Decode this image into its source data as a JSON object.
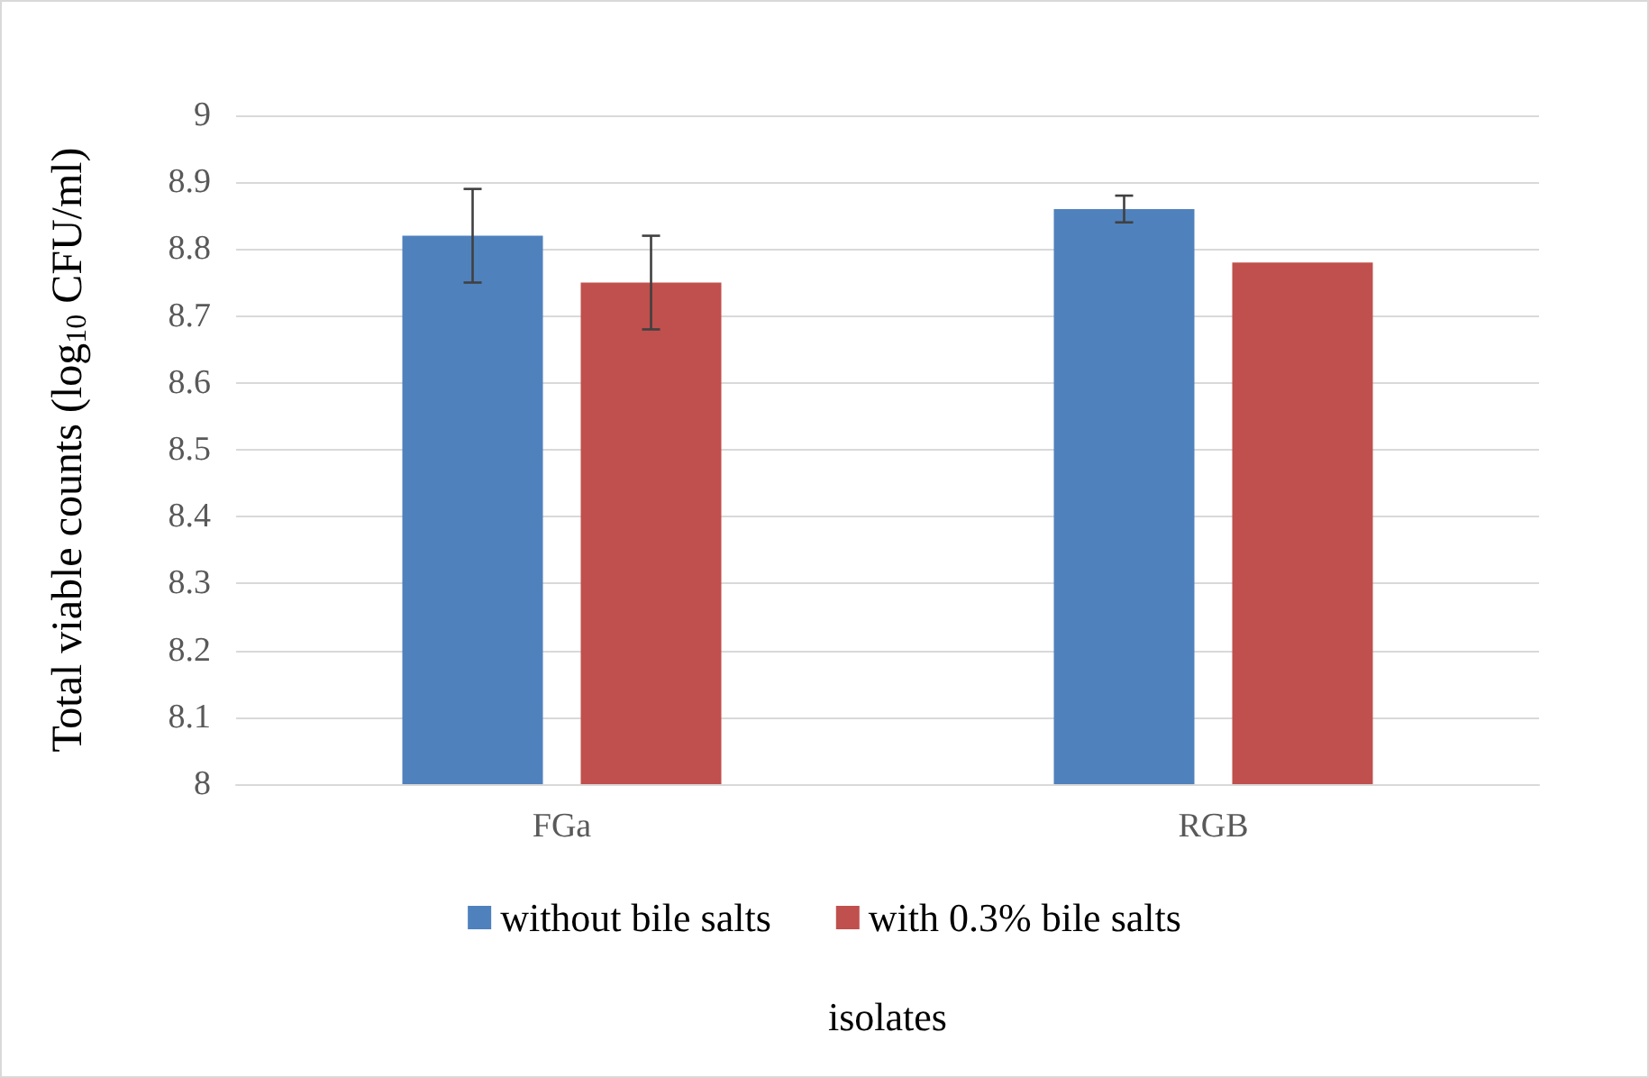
{
  "chart_data": {
    "type": "bar",
    "xlabel": "isolates",
    "ylabel": "Total viable counts (log$_{10}$ CFU/ml)",
    "categories": [
      "FGa",
      "RGB"
    ],
    "series": [
      {
        "name": "without bile salts",
        "color": "#4f81bd",
        "values": [
          8.82,
          8.86
        ],
        "errors": [
          0.07,
          0.02
        ]
      },
      {
        "name": "with 0.3% bile salts",
        "color": "#c0504d",
        "values": [
          8.75,
          8.78
        ],
        "errors": [
          0.07,
          null
        ]
      }
    ],
    "ylim": [
      8,
      9
    ],
    "yticks": [
      8,
      8.1,
      8.2,
      8.3,
      8.4,
      8.5,
      8.6,
      8.7,
      8.8,
      8.9,
      9
    ],
    "grid": "y",
    "legend": "bottom"
  }
}
